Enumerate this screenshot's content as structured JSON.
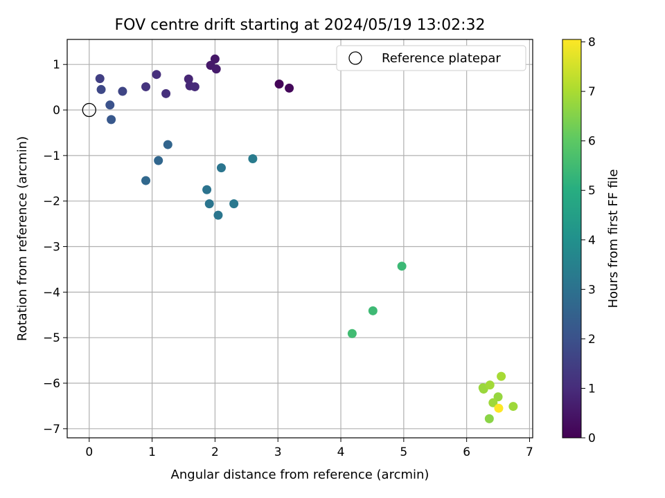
{
  "chart_data": {
    "type": "scatter",
    "title": "FOV centre drift starting at 2024/05/19 13:02:32",
    "xlabel": "Angular distance from reference (arcmin)",
    "ylabel": "Rotation from reference (arcmin)",
    "xlim": [
      -0.35,
      7.05
    ],
    "ylim": [
      -7.2,
      1.55
    ],
    "xticks": [
      0,
      1,
      2,
      3,
      4,
      5,
      6,
      7
    ],
    "yticks": [
      1,
      0,
      -1,
      -2,
      -3,
      -4,
      -5,
      -6,
      -7
    ],
    "grid": true,
    "legend": {
      "placement": "top-right",
      "entries": [
        "Reference platepar"
      ]
    },
    "reference_point": {
      "x": 0,
      "y": 0
    },
    "colorbar": {
      "label": "Hours from first FF file",
      "range": [
        0,
        8.05
      ],
      "ticks": [
        0,
        1,
        2,
        3,
        4,
        5,
        6,
        7,
        8
      ],
      "colormap": "viridis"
    },
    "points": [
      {
        "x": 3.02,
        "y": 0.57,
        "c": 0.1
      },
      {
        "x": 3.18,
        "y": 0.48,
        "c": 0.15
      },
      {
        "x": 2.0,
        "y": 1.12,
        "c": 0.5
      },
      {
        "x": 1.93,
        "y": 0.98,
        "c": 0.55
      },
      {
        "x": 2.02,
        "y": 0.9,
        "c": 0.6
      },
      {
        "x": 1.58,
        "y": 0.68,
        "c": 0.85
      },
      {
        "x": 1.6,
        "y": 0.53,
        "c": 0.9
      },
      {
        "x": 1.68,
        "y": 0.51,
        "c": 0.95
      },
      {
        "x": 1.07,
        "y": 0.78,
        "c": 1.05
      },
      {
        "x": 1.22,
        "y": 0.36,
        "c": 1.1
      },
      {
        "x": 0.9,
        "y": 0.51,
        "c": 1.2
      },
      {
        "x": 0.17,
        "y": 0.69,
        "c": 1.5
      },
      {
        "x": 0.53,
        "y": 0.41,
        "c": 1.65
      },
      {
        "x": 0.19,
        "y": 0.45,
        "c": 1.75
      },
      {
        "x": 0.33,
        "y": 0.11,
        "c": 2.0
      },
      {
        "x": 0.35,
        "y": -0.21,
        "c": 2.2
      },
      {
        "x": 1.25,
        "y": -0.76,
        "c": 2.6
      },
      {
        "x": 1.1,
        "y": -1.11,
        "c": 2.65
      },
      {
        "x": 0.9,
        "y": -1.55,
        "c": 2.7
      },
      {
        "x": 2.1,
        "y": -1.27,
        "c": 3.1
      },
      {
        "x": 2.6,
        "y": -1.07,
        "c": 3.3
      },
      {
        "x": 1.87,
        "y": -1.75,
        "c": 3.05
      },
      {
        "x": 1.91,
        "y": -2.06,
        "c": 3.1
      },
      {
        "x": 2.05,
        "y": -2.31,
        "c": 3.15
      },
      {
        "x": 2.3,
        "y": -2.06,
        "c": 3.2
      },
      {
        "x": 4.97,
        "y": -3.43,
        "c": 5.4
      },
      {
        "x": 4.51,
        "y": -4.41,
        "c": 5.45
      },
      {
        "x": 4.18,
        "y": -4.91,
        "c": 5.5
      },
      {
        "x": 6.26,
        "y": -6.1,
        "c": 6.8
      },
      {
        "x": 6.27,
        "y": -6.13,
        "c": 6.8
      },
      {
        "x": 6.37,
        "y": -6.04,
        "c": 6.9
      },
      {
        "x": 6.55,
        "y": -5.85,
        "c": 6.95
      },
      {
        "x": 6.5,
        "y": -6.3,
        "c": 6.75
      },
      {
        "x": 6.42,
        "y": -6.43,
        "c": 6.85
      },
      {
        "x": 6.74,
        "y": -6.51,
        "c": 6.85
      },
      {
        "x": 6.36,
        "y": -6.78,
        "c": 6.6
      },
      {
        "x": 6.51,
        "y": -6.55,
        "c": 8.05
      }
    ]
  }
}
